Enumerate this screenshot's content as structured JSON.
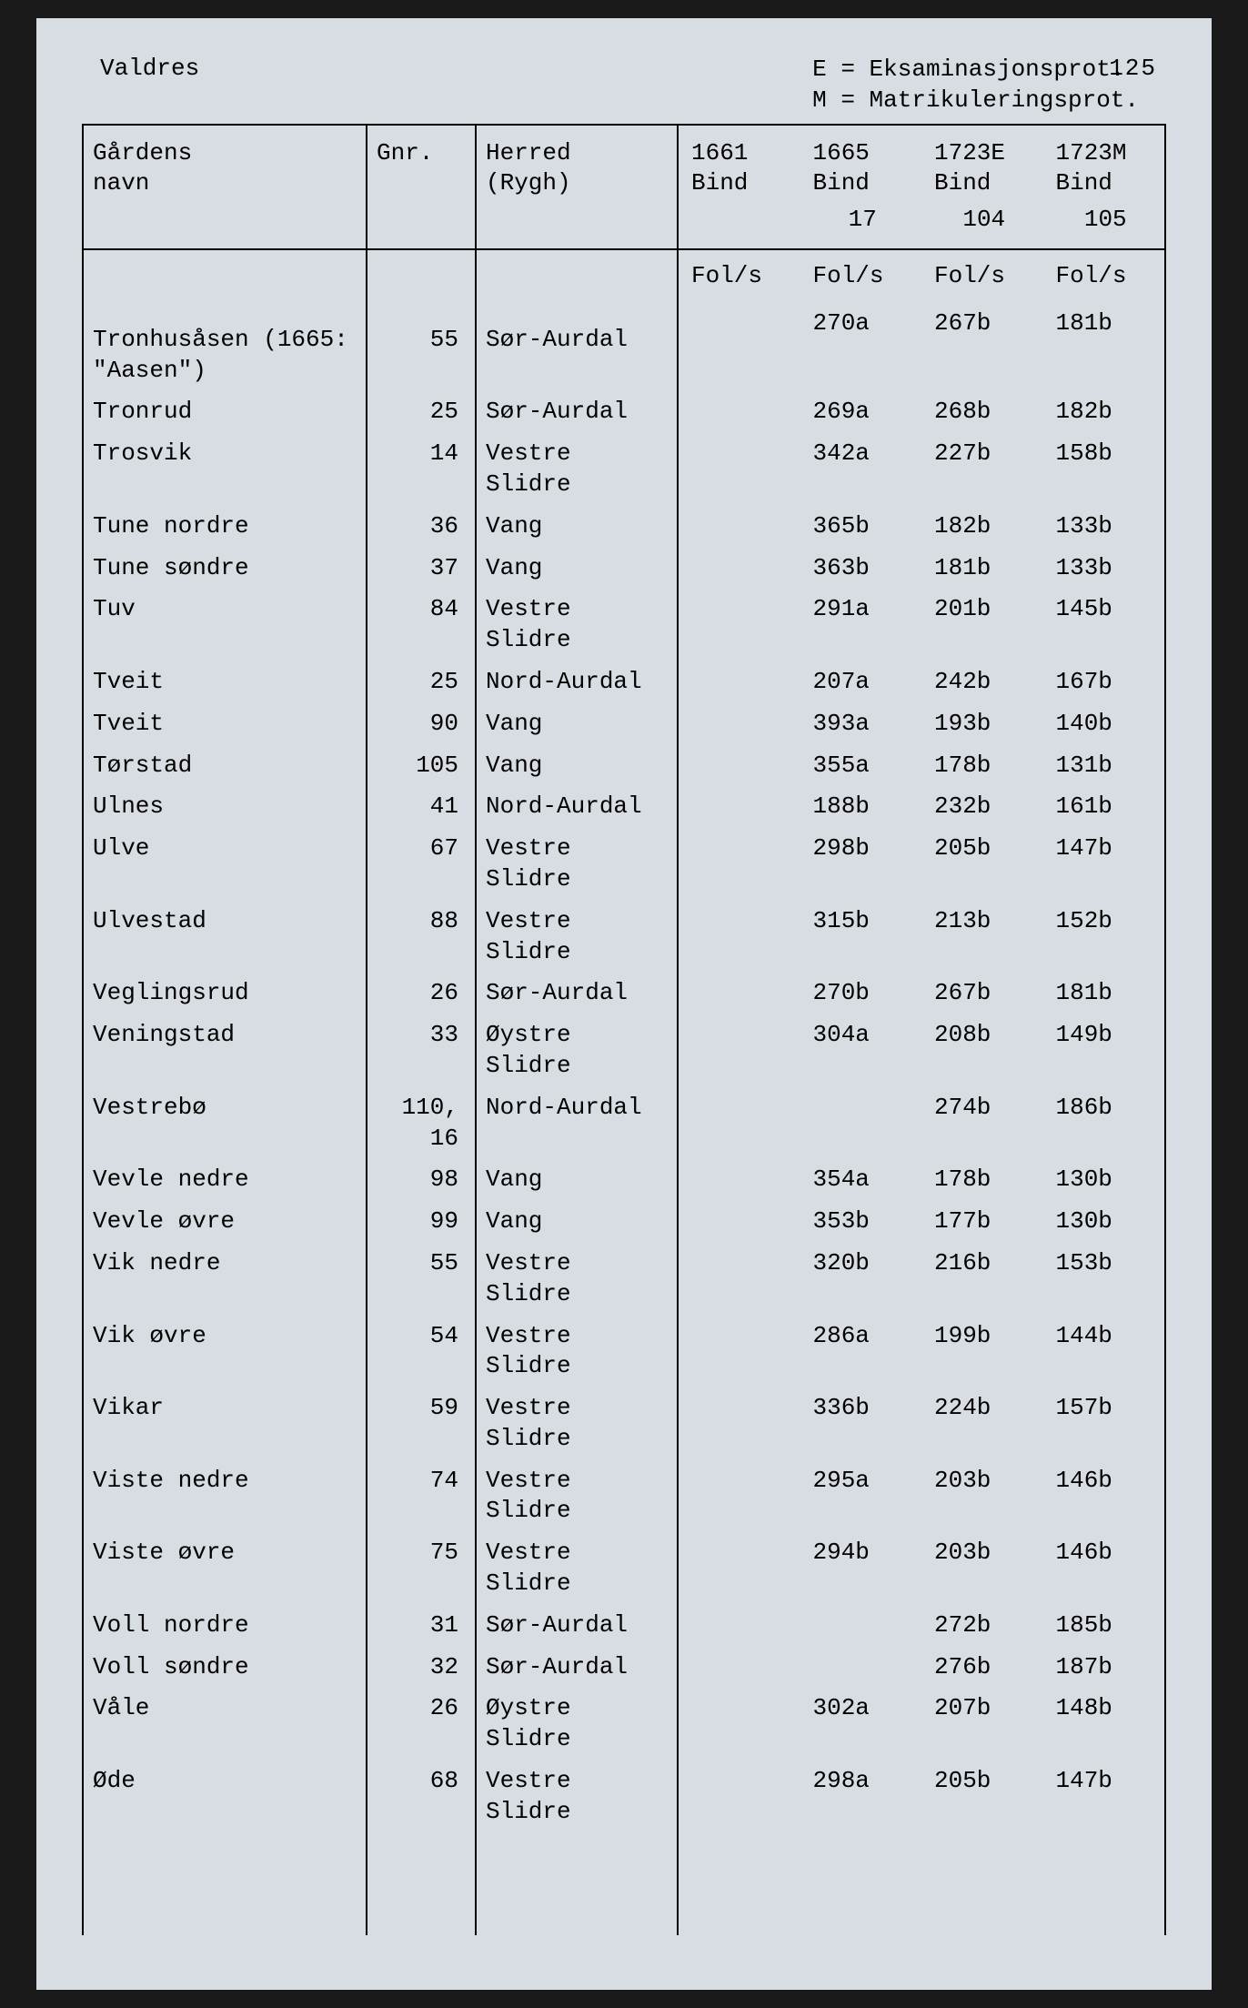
{
  "page_number": "125",
  "region": "Valdres",
  "legend": {
    "line1": "E = Eksaminasjonsprot.",
    "line2": "M = Matrikuleringsprot."
  },
  "columns": {
    "name": "Gårdens\nnavn",
    "gnr": "Gnr.",
    "herred": "Herred\n(Rygh)",
    "y1661": "1661\nBind",
    "y1665": "1665\nBind",
    "y1723E": "1723E\nBind",
    "y1723M": "1723M\nBind",
    "bind1665": "17",
    "bind1723E": "104",
    "bind1723M": "105",
    "fols": "Fol/s"
  },
  "rows": [
    {
      "name": "Tronhusåsen  (1665:\n\"Aasen\")",
      "gnr": "55",
      "herred": "Sør-Aurdal",
      "y1661": "",
      "y1665": "270a",
      "y1723E": "267b",
      "y1723M": "181b"
    },
    {
      "name": "Tronrud",
      "gnr": "25",
      "herred": "Sør-Aurdal",
      "y1661": "",
      "y1665": "269a",
      "y1723E": "268b",
      "y1723M": "182b"
    },
    {
      "name": "Trosvik",
      "gnr": "14",
      "herred": "Vestre\nSlidre",
      "y1661": "",
      "y1665": "342a",
      "y1723E": "227b",
      "y1723M": "158b"
    },
    {
      "name": "Tune nordre",
      "gnr": "36",
      "herred": "Vang",
      "y1661": "",
      "y1665": "365b",
      "y1723E": "182b",
      "y1723M": "133b"
    },
    {
      "name": "Tune søndre",
      "gnr": "37",
      "herred": "Vang",
      "y1661": "",
      "y1665": "363b",
      "y1723E": "181b",
      "y1723M": "133b"
    },
    {
      "name": "Tuv",
      "gnr": "84",
      "herred": "Vestre\nSlidre",
      "y1661": "",
      "y1665": "291a",
      "y1723E": "201b",
      "y1723M": "145b"
    },
    {
      "name": "Tveit",
      "gnr": "25",
      "herred": "Nord-Aurdal",
      "y1661": "",
      "y1665": "207a",
      "y1723E": "242b",
      "y1723M": "167b"
    },
    {
      "name": "Tveit",
      "gnr": "90",
      "herred": "Vang",
      "y1661": "",
      "y1665": "393a",
      "y1723E": "193b",
      "y1723M": "140b"
    },
    {
      "name": "Tørstad",
      "gnr": "105",
      "herred": "Vang",
      "y1661": "",
      "y1665": "355a",
      "y1723E": "178b",
      "y1723M": "131b"
    },
    {
      "name": "Ulnes",
      "gnr": "41",
      "herred": "Nord-Aurdal",
      "y1661": "",
      "y1665": "188b",
      "y1723E": "232b",
      "y1723M": "161b"
    },
    {
      "name": "Ulve",
      "gnr": "67",
      "herred": "Vestre\nSlidre",
      "y1661": "",
      "y1665": "298b",
      "y1723E": "205b",
      "y1723M": "147b"
    },
    {
      "name": "Ulvestad",
      "gnr": "88",
      "herred": "Vestre\nSlidre",
      "y1661": "",
      "y1665": "315b",
      "y1723E": "213b",
      "y1723M": "152b"
    },
    {
      "name": "Veglingsrud",
      "gnr": "26",
      "herred": "Sør-Aurdal",
      "y1661": "",
      "y1665": "270b",
      "y1723E": "267b",
      "y1723M": "181b"
    },
    {
      "name": "Veningstad",
      "gnr": "33",
      "herred": "Øystre\nSlidre",
      "y1661": "",
      "y1665": "304a",
      "y1723E": "208b",
      "y1723M": "149b"
    },
    {
      "name": "Vestrebø",
      "gnr": "110,\n16",
      "herred": "Nord-Aurdal",
      "y1661": "",
      "y1665": "",
      "y1723E": "274b",
      "y1723M": "186b"
    },
    {
      "name": "Vevle nedre",
      "gnr": "98",
      "herred": "Vang",
      "y1661": "",
      "y1665": "354a",
      "y1723E": "178b",
      "y1723M": "130b"
    },
    {
      "name": "Vevle øvre",
      "gnr": "99",
      "herred": "Vang",
      "y1661": "",
      "y1665": "353b",
      "y1723E": "177b",
      "y1723M": "130b"
    },
    {
      "name": "Vik nedre",
      "gnr": "55",
      "herred": "Vestre\nSlidre",
      "y1661": "",
      "y1665": "320b",
      "y1723E": "216b",
      "y1723M": "153b"
    },
    {
      "name": "Vik øvre",
      "gnr": "54",
      "herred": "Vestre\nSlidre",
      "y1661": "",
      "y1665": "286a",
      "y1723E": "199b",
      "y1723M": "144b"
    },
    {
      "name": "Vikar",
      "gnr": "59",
      "herred": "Vestre\nSlidre",
      "y1661": "",
      "y1665": "336b",
      "y1723E": "224b",
      "y1723M": "157b"
    },
    {
      "name": "Viste nedre",
      "gnr": "74",
      "herred": "Vestre\nSlidre",
      "y1661": "",
      "y1665": "295a",
      "y1723E": "203b",
      "y1723M": "146b"
    },
    {
      "name": "Viste øvre",
      "gnr": "75",
      "herred": "Vestre\nSlidre",
      "y1661": "",
      "y1665": "294b",
      "y1723E": "203b",
      "y1723M": "146b"
    },
    {
      "name": "Voll nordre",
      "gnr": "31",
      "herred": "Sør-Aurdal",
      "y1661": "",
      "y1665": "",
      "y1723E": "272b",
      "y1723M": "185b"
    },
    {
      "name": "Voll søndre",
      "gnr": "32",
      "herred": "Sør-Aurdal",
      "y1661": "",
      "y1665": "",
      "y1723E": "276b",
      "y1723M": "187b"
    },
    {
      "name": "Våle",
      "gnr": "26",
      "herred": "Øystre\nSlidre",
      "y1661": "",
      "y1665": "302a",
      "y1723E": "207b",
      "y1723M": "148b"
    },
    {
      "name": "Øde",
      "gnr": "68",
      "herred": "Vestre\nSlidre",
      "y1661": "",
      "y1665": "298a",
      "y1723E": "205b",
      "y1723M": "147b"
    }
  ],
  "style": {
    "background_color": "#d8dde3",
    "text_color": "#000000",
    "border_color": "#000000",
    "font_family": "Courier New",
    "base_fontsize_pt": 20
  }
}
